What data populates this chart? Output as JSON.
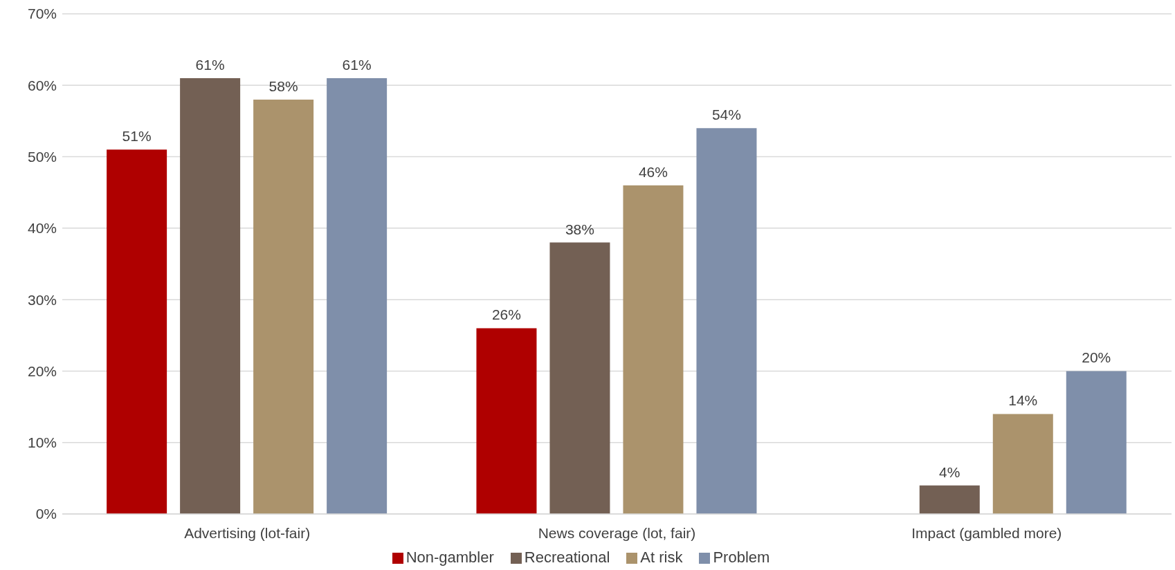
{
  "chart_data": {
    "type": "bar",
    "categories": [
      "Advertising (lot-fair)",
      "News coverage (lot, fair)",
      "Impact (gambled more)"
    ],
    "series": [
      {
        "name": "Non-gambler",
        "color": "#af0000",
        "values": [
          51,
          26,
          null
        ],
        "value_labels": [
          "51%",
          "26%",
          null
        ]
      },
      {
        "name": "Recreational",
        "color": "#736054",
        "values": [
          61,
          38,
          4
        ],
        "value_labels": [
          "61%",
          "38%",
          "4%"
        ]
      },
      {
        "name": "At risk",
        "color": "#ab936c",
        "values": [
          58,
          46,
          14
        ],
        "value_labels": [
          "58%",
          "46%",
          "14%"
        ]
      },
      {
        "name": "Problem",
        "color": "#7f8faa",
        "values": [
          61,
          54,
          20
        ],
        "value_labels": [
          "61%",
          "54%",
          "20%"
        ]
      }
    ],
    "ylim": [
      0,
      70
    ],
    "yticks": [
      {
        "value": 0,
        "label": "0%"
      },
      {
        "value": 10,
        "label": "10%"
      },
      {
        "value": 20,
        "label": "20%"
      },
      {
        "value": 30,
        "label": "30%"
      },
      {
        "value": 40,
        "label": "40%"
      },
      {
        "value": 50,
        "label": "50%"
      },
      {
        "value": 60,
        "label": "60%"
      },
      {
        "value": 70,
        "label": "70%"
      }
    ],
    "grid": "y",
    "legend": "bottom"
  }
}
